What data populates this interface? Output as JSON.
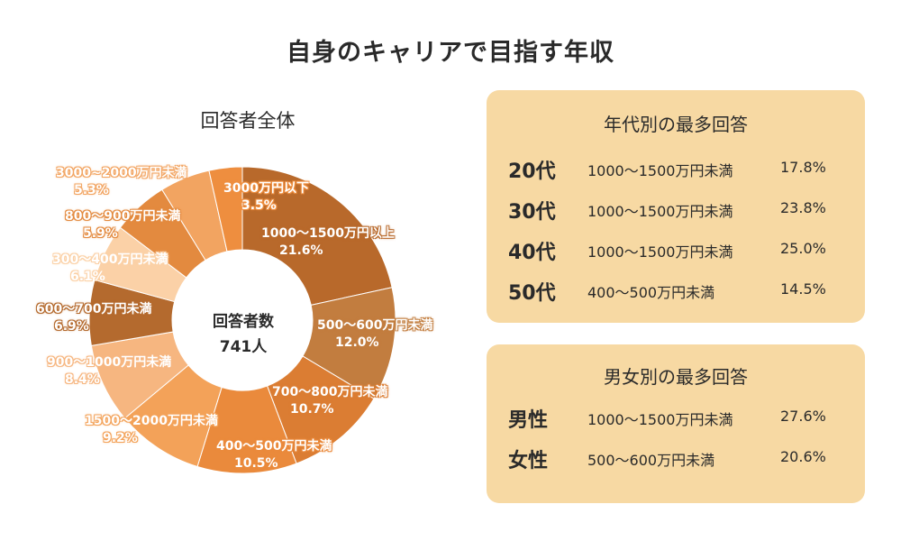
{
  "title": "自身のキャリアで目指す年収",
  "pie_title": "回答者全体",
  "center": {
    "line1": "回答者数",
    "line2": "741人"
  },
  "colors": {
    "panel_bg": "#f7d9a3",
    "segments": [
      "#b8692b",
      "#c27d3f",
      "#db7d33",
      "#ea8a3c",
      "#f3a259",
      "#f6b680",
      "#b46a2e",
      "#fbd1a7",
      "#e38a3f",
      "#f2a461",
      "#ee8e3f"
    ]
  },
  "chart_data": {
    "type": "pie",
    "title": "回答者全体",
    "slices": [
      {
        "label": "1000〜1500万円以上",
        "value": 21.6,
        "value_label": "21.6%"
      },
      {
        "label": "500〜600万円未満",
        "value": 12.0,
        "value_label": "12.0%"
      },
      {
        "label": "700〜800万円未満",
        "value": 10.7,
        "value_label": "10.7%"
      },
      {
        "label": "400〜500万円未満",
        "value": 10.5,
        "value_label": "10.5%"
      },
      {
        "label": "1500〜2000万円未満",
        "value": 9.2,
        "value_label": "9.2%"
      },
      {
        "label": "900〜1000万円未満",
        "value": 8.4,
        "value_label": "8.4%"
      },
      {
        "label": "600〜700万円未満",
        "value": 6.9,
        "value_label": "6.9%"
      },
      {
        "label": "300〜400万円未満",
        "value": 6.1,
        "value_label": "6.1%"
      },
      {
        "label": "800〜900万円未満",
        "value": 5.9,
        "value_label": "5.9%"
      },
      {
        "label": "3000~2000万円未満",
        "value": 5.3,
        "value_label": "5.3%"
      },
      {
        "label": "3000万円以下",
        "value": 3.5,
        "value_label": "3.5%"
      }
    ]
  },
  "age_panel": {
    "title": "年代別の最多回答",
    "rows": [
      {
        "group": "20代",
        "answer": "1000〜1500万円未満",
        "percent": "17.8%"
      },
      {
        "group": "30代",
        "answer": "1000〜1500万円未満",
        "percent": "23.8%"
      },
      {
        "group": "40代",
        "answer": "1000〜1500万円未満",
        "percent": "25.0%"
      },
      {
        "group": "50代",
        "answer": "400〜500万円未満",
        "percent": "14.5%"
      }
    ]
  },
  "gender_panel": {
    "title": "男女別の最多回答",
    "rows": [
      {
        "group": "男性",
        "answer": "1000〜1500万円未満",
        "percent": "27.6%"
      },
      {
        "group": "女性",
        "answer": "500〜600万円未満",
        "percent": "20.6%"
      }
    ]
  }
}
